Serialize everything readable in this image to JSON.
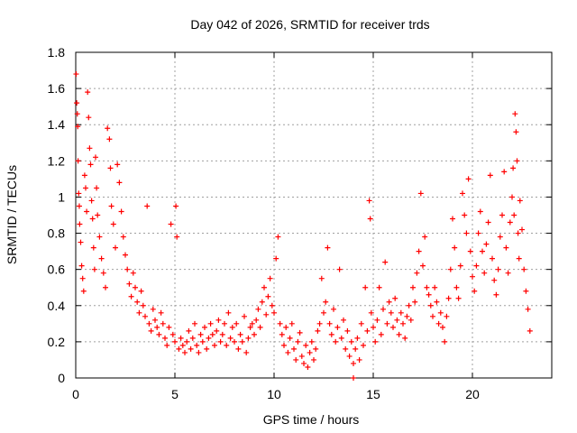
{
  "chart_data": {
    "type": "scatter",
    "title": "Day 042 of 2026, SRMTID for receiver trds",
    "xlabel": "GPS time / hours",
    "ylabel": "SRMTID / TECUs",
    "xlim": [
      0,
      24
    ],
    "ylim": [
      0,
      1.8
    ],
    "xticks": [
      "0",
      "5",
      "10",
      "15",
      "20"
    ],
    "yticks": [
      "0",
      "0.2",
      "0.4",
      "0.6",
      "0.8",
      "1",
      "1.2",
      "1.4",
      "1.6",
      "1.8"
    ],
    "grid": true,
    "marker": "+",
    "color": "#ff0000",
    "series": [
      {
        "name": "SRMTID",
        "points": [
          [
            0.02,
            1.68
          ],
          [
            0.05,
            1.52
          ],
          [
            0.08,
            1.46
          ],
          [
            0.1,
            1.39
          ],
          [
            0.12,
            1.2
          ],
          [
            0.15,
            1.02
          ],
          [
            0.18,
            0.95
          ],
          [
            0.2,
            0.85
          ],
          [
            0.25,
            0.75
          ],
          [
            0.3,
            0.62
          ],
          [
            0.35,
            0.55
          ],
          [
            0.4,
            0.48
          ],
          [
            0.45,
            1.12
          ],
          [
            0.5,
            1.05
          ],
          [
            0.55,
            0.92
          ],
          [
            0.6,
            1.58
          ],
          [
            0.65,
            1.44
          ],
          [
            0.7,
            1.27
          ],
          [
            0.75,
            1.18
          ],
          [
            0.8,
            0.98
          ],
          [
            0.85,
            0.88
          ],
          [
            0.9,
            0.72
          ],
          [
            0.95,
            0.6
          ],
          [
            1.0,
            1.22
          ],
          [
            1.05,
            1.05
          ],
          [
            1.1,
            0.9
          ],
          [
            1.2,
            0.78
          ],
          [
            1.3,
            0.66
          ],
          [
            1.4,
            0.58
          ],
          [
            1.5,
            0.5
          ],
          [
            1.6,
            1.38
          ],
          [
            1.7,
            1.32
          ],
          [
            1.75,
            1.16
          ],
          [
            1.8,
            0.95
          ],
          [
            1.9,
            0.85
          ],
          [
            2.0,
            0.72
          ],
          [
            2.1,
            1.18
          ],
          [
            2.2,
            1.08
          ],
          [
            2.3,
            0.92
          ],
          [
            2.4,
            0.78
          ],
          [
            2.5,
            0.68
          ],
          [
            2.6,
            0.6
          ],
          [
            2.7,
            0.52
          ],
          [
            2.8,
            0.45
          ],
          [
            2.9,
            0.58
          ],
          [
            3.0,
            0.5
          ],
          [
            3.1,
            0.42
          ],
          [
            3.2,
            0.36
          ],
          [
            3.3,
            0.48
          ],
          [
            3.4,
            0.4
          ],
          [
            3.5,
            0.34
          ],
          [
            3.6,
            0.95
          ],
          [
            3.7,
            0.3
          ],
          [
            3.8,
            0.26
          ],
          [
            3.9,
            0.38
          ],
          [
            4.0,
            0.32
          ],
          [
            4.1,
            0.28
          ],
          [
            4.2,
            0.24
          ],
          [
            4.3,
            0.36
          ],
          [
            4.4,
            0.3
          ],
          [
            4.5,
            0.22
          ],
          [
            4.6,
            0.18
          ],
          [
            4.7,
            0.28
          ],
          [
            4.8,
            0.85
          ],
          [
            4.9,
            0.24
          ],
          [
            5.0,
            0.2
          ],
          [
            5.05,
            0.95
          ],
          [
            5.1,
            0.78
          ],
          [
            5.2,
            0.16
          ],
          [
            5.3,
            0.22
          ],
          [
            5.4,
            0.18
          ],
          [
            5.5,
            0.14
          ],
          [
            5.6,
            0.2
          ],
          [
            5.7,
            0.26
          ],
          [
            5.8,
            0.16
          ],
          [
            5.9,
            0.22
          ],
          [
            6.0,
            0.3
          ],
          [
            6.1,
            0.18
          ],
          [
            6.2,
            0.14
          ],
          [
            6.3,
            0.24
          ],
          [
            6.4,
            0.2
          ],
          [
            6.5,
            0.28
          ],
          [
            6.6,
            0.16
          ],
          [
            6.7,
            0.22
          ],
          [
            6.8,
            0.3
          ],
          [
            6.9,
            0.24
          ],
          [
            7.0,
            0.18
          ],
          [
            7.1,
            0.26
          ],
          [
            7.2,
            0.32
          ],
          [
            7.3,
            0.2
          ],
          [
            7.4,
            0.24
          ],
          [
            7.5,
            0.3
          ],
          [
            7.6,
            0.18
          ],
          [
            7.7,
            0.36
          ],
          [
            7.8,
            0.22
          ],
          [
            7.9,
            0.28
          ],
          [
            8.0,
            0.2
          ],
          [
            8.1,
            0.3
          ],
          [
            8.2,
            0.16
          ],
          [
            8.3,
            0.24
          ],
          [
            8.4,
            0.2
          ],
          [
            8.5,
            0.34
          ],
          [
            8.6,
            0.14
          ],
          [
            8.7,
            0.22
          ],
          [
            8.8,
            0.28
          ],
          [
            8.9,
            0.3
          ],
          [
            9.0,
            0.24
          ],
          [
            9.1,
            0.32
          ],
          [
            9.2,
            0.38
          ],
          [
            9.3,
            0.28
          ],
          [
            9.4,
            0.42
          ],
          [
            9.5,
            0.5
          ],
          [
            9.6,
            0.35
          ],
          [
            9.7,
            0.45
          ],
          [
            9.8,
            0.55
          ],
          [
            9.9,
            0.4
          ],
          [
            10.0,
            0.36
          ],
          [
            10.1,
            0.66
          ],
          [
            10.2,
            0.78
          ],
          [
            10.3,
            0.3
          ],
          [
            10.4,
            0.24
          ],
          [
            10.5,
            0.18
          ],
          [
            10.6,
            0.28
          ],
          [
            10.7,
            0.14
          ],
          [
            10.8,
            0.22
          ],
          [
            10.9,
            0.3
          ],
          [
            11.0,
            0.16
          ],
          [
            11.1,
            0.1
          ],
          [
            11.2,
            0.2
          ],
          [
            11.3,
            0.25
          ],
          [
            11.4,
            0.12
          ],
          [
            11.5,
            0.08
          ],
          [
            11.6,
            0.18
          ],
          [
            11.7,
            0.06
          ],
          [
            11.8,
            0.14
          ],
          [
            11.9,
            0.2
          ],
          [
            12.0,
            0.1
          ],
          [
            12.1,
            0.16
          ],
          [
            12.2,
            0.26
          ],
          [
            12.3,
            0.3
          ],
          [
            12.4,
            0.55
          ],
          [
            12.5,
            0.36
          ],
          [
            12.6,
            0.42
          ],
          [
            12.7,
            0.72
          ],
          [
            12.8,
            0.3
          ],
          [
            12.9,
            0.24
          ],
          [
            13.0,
            0.38
          ],
          [
            13.1,
            0.2
          ],
          [
            13.2,
            0.28
          ],
          [
            13.3,
            0.6
          ],
          [
            13.4,
            0.22
          ],
          [
            13.5,
            0.32
          ],
          [
            13.6,
            0.16
          ],
          [
            13.7,
            0.26
          ],
          [
            13.8,
            0.12
          ],
          [
            13.9,
            0.2
          ],
          [
            14.0,
            0.08
          ],
          [
            14.1,
            0.16
          ],
          [
            14.2,
            0.22
          ],
          [
            14.3,
            0.1
          ],
          [
            14.4,
            0.3
          ],
          [
            14.5,
            0.18
          ],
          [
            14.6,
            0.5
          ],
          [
            14.7,
            0.26
          ],
          [
            14.8,
            0.98
          ],
          [
            14.85,
            0.88
          ],
          [
            14.9,
            0.36
          ],
          [
            15.0,
            0.28
          ],
          [
            15.1,
            0.2
          ],
          [
            15.2,
            0.32
          ],
          [
            15.3,
            0.5
          ],
          [
            15.4,
            0.24
          ],
          [
            15.5,
            0.38
          ],
          [
            15.6,
            0.64
          ],
          [
            15.7,
            0.3
          ],
          [
            15.8,
            0.42
          ],
          [
            15.9,
            0.36
          ],
          [
            16.0,
            0.28
          ],
          [
            16.1,
            0.44
          ],
          [
            16.2,
            0.32
          ],
          [
            16.3,
            0.24
          ],
          [
            16.4,
            0.36
          ],
          [
            16.5,
            0.3
          ],
          [
            16.6,
            0.22
          ],
          [
            16.7,
            0.34
          ],
          [
            16.8,
            0.4
          ],
          [
            16.9,
            0.32
          ],
          [
            17.0,
            0.5
          ],
          [
            17.1,
            0.42
          ],
          [
            17.2,
            0.58
          ],
          [
            17.3,
            0.7
          ],
          [
            17.4,
            1.02
          ],
          [
            17.5,
            0.62
          ],
          [
            17.6,
            0.78
          ],
          [
            17.7,
            0.5
          ],
          [
            17.8,
            0.46
          ],
          [
            17.9,
            0.4
          ],
          [
            18.0,
            0.34
          ],
          [
            18.1,
            0.5
          ],
          [
            18.2,
            0.42
          ],
          [
            18.3,
            0.3
          ],
          [
            18.4,
            0.36
          ],
          [
            18.5,
            0.28
          ],
          [
            18.6,
            0.2
          ],
          [
            18.7,
            0.34
          ],
          [
            18.8,
            0.44
          ],
          [
            18.9,
            0.6
          ],
          [
            19.0,
            0.88
          ],
          [
            19.1,
            0.72
          ],
          [
            19.2,
            0.5
          ],
          [
            19.3,
            0.44
          ],
          [
            19.4,
            0.62
          ],
          [
            19.5,
            1.02
          ],
          [
            19.6,
            0.9
          ],
          [
            19.7,
            0.8
          ],
          [
            19.8,
            1.1
          ],
          [
            19.9,
            0.7
          ],
          [
            20.0,
            0.56
          ],
          [
            20.1,
            0.48
          ],
          [
            20.2,
            0.62
          ],
          [
            20.3,
            0.8
          ],
          [
            20.4,
            0.92
          ],
          [
            20.5,
            0.7
          ],
          [
            20.6,
            0.58
          ],
          [
            20.7,
            0.74
          ],
          [
            20.8,
            0.86
          ],
          [
            20.9,
            1.12
          ],
          [
            21.0,
            0.66
          ],
          [
            21.1,
            0.54
          ],
          [
            21.2,
            0.46
          ],
          [
            21.3,
            0.6
          ],
          [
            21.4,
            0.78
          ],
          [
            21.5,
            0.9
          ],
          [
            21.6,
            1.14
          ],
          [
            21.7,
            0.72
          ],
          [
            21.8,
            0.58
          ],
          [
            21.9,
            0.86
          ],
          [
            22.0,
            1.0
          ],
          [
            22.05,
            1.16
          ],
          [
            22.1,
            0.9
          ],
          [
            22.15,
            1.46
          ],
          [
            22.2,
            1.36
          ],
          [
            22.25,
            1.2
          ],
          [
            22.3,
            0.8
          ],
          [
            22.35,
            0.66
          ],
          [
            22.4,
            0.98
          ],
          [
            22.5,
            0.82
          ],
          [
            22.6,
            0.6
          ],
          [
            22.7,
            0.48
          ],
          [
            22.8,
            0.38
          ],
          [
            22.9,
            0.26
          ],
          [
            14.0,
            0.0
          ]
        ]
      }
    ]
  }
}
